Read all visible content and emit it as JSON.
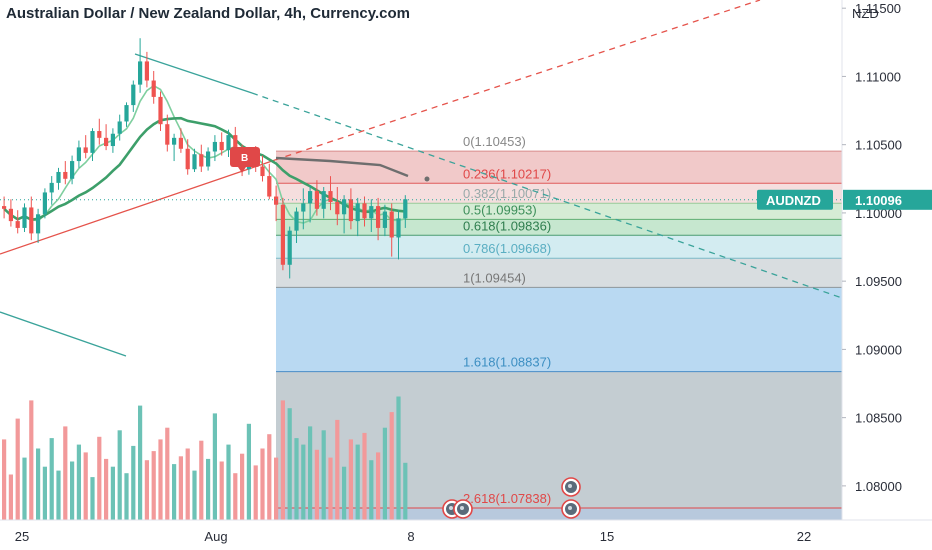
{
  "title": "Australian Dollar / New Zealand Dollar, 4h, Currency.com",
  "currency_label": "NZD",
  "symbol_tag": "AUDNZD",
  "price_tag": "1.10096",
  "buy_marker": "B",
  "colors": {
    "up": "#26a69a",
    "down": "#ef5350",
    "ma_fast": "#7fcf9f",
    "ma_slow": "#3d9f6a",
    "trend_red": "#e5534b",
    "trend_teal": "#3aa39a",
    "accent_blue": "#2962ff"
  },
  "chart_data": {
    "type": "candlestick",
    "symbol": "AUDNZD",
    "timeframe": "4h",
    "ylim": [
      1.0775,
      1.1156
    ],
    "y_ticks": [
      "1.11500",
      "1.11000",
      "1.10500",
      "1.10000",
      "1.09500",
      "1.09000",
      "1.08500",
      "1.08000"
    ],
    "x_ticks": [
      "25",
      "Aug",
      "8",
      "15",
      "22"
    ],
    "last_price": 1.10096,
    "fib_levels": [
      {
        "label": "0(1.10453)",
        "price": 1.10453
      },
      {
        "label": "0.236(1.10217)",
        "price": 1.10217
      },
      {
        "label": "0.382(1.10071)",
        "price": 1.10071
      },
      {
        "label": "0.5(1.09953)",
        "price": 1.09953
      },
      {
        "label": "0.618(1.09836)",
        "price": 1.09836
      },
      {
        "label": "0.786(1.09668)",
        "price": 1.09668
      },
      {
        "label": "1(1.09454)",
        "price": 1.09454
      },
      {
        "label": "1.618(1.08837)",
        "price": 1.08837
      },
      {
        "label": "2.618(1.07838)",
        "price": 1.07838
      }
    ],
    "candles": [
      [
        1.1005,
        1.1012,
        1.0996,
        1.1003
      ],
      [
        1.1003,
        1.101,
        1.099,
        1.0994
      ],
      [
        1.0994,
        1.1002,
        1.0985,
        1.0989
      ],
      [
        1.0989,
        1.1007,
        1.0986,
        1.1004
      ],
      [
        1.1004,
        1.1012,
        1.098,
        1.0985
      ],
      [
        1.0985,
        1.1003,
        1.0978,
        1.0999
      ],
      [
        1.0999,
        1.1018,
        1.0996,
        1.1015
      ],
      [
        1.1015,
        1.1027,
        1.1006,
        1.1022
      ],
      [
        1.1022,
        1.1033,
        1.1017,
        1.103
      ],
      [
        1.103,
        1.1038,
        1.1021,
        1.1025
      ],
      [
        1.1025,
        1.1042,
        1.1021,
        1.1038
      ],
      [
        1.1038,
        1.1053,
        1.1033,
        1.1048
      ],
      [
        1.1048,
        1.1057,
        1.104,
        1.1044
      ],
      [
        1.1044,
        1.1062,
        1.1038,
        1.106
      ],
      [
        1.106,
        1.1069,
        1.105,
        1.1055
      ],
      [
        1.1055,
        1.1065,
        1.1046,
        1.1049
      ],
      [
        1.1049,
        1.1062,
        1.1044,
        1.1058
      ],
      [
        1.1058,
        1.1072,
        1.1053,
        1.1067
      ],
      [
        1.1067,
        1.1081,
        1.1063,
        1.1079
      ],
      [
        1.1079,
        1.1097,
        1.1074,
        1.1094
      ],
      [
        1.1094,
        1.1128,
        1.1088,
        1.1111
      ],
      [
        1.1111,
        1.1118,
        1.1092,
        1.1097
      ],
      [
        1.1097,
        1.1104,
        1.108,
        1.1085
      ],
      [
        1.1085,
        1.1089,
        1.106,
        1.1065
      ],
      [
        1.1065,
        1.1072,
        1.1045,
        1.105
      ],
      [
        1.105,
        1.1058,
        1.1038,
        1.1055
      ],
      [
        1.1055,
        1.1062,
        1.1044,
        1.1047
      ],
      [
        1.1047,
        1.1054,
        1.1028,
        1.1032
      ],
      [
        1.1032,
        1.1047,
        1.103,
        1.1043
      ],
      [
        1.1043,
        1.105,
        1.103,
        1.1034
      ],
      [
        1.1034,
        1.1048,
        1.1031,
        1.1045
      ],
      [
        1.1045,
        1.1057,
        1.1038,
        1.1052
      ],
      [
        1.1052,
        1.1059,
        1.1042,
        1.1046
      ],
      [
        1.1046,
        1.1061,
        1.1041,
        1.1057
      ],
      [
        1.1057,
        1.1063,
        1.104,
        1.1043
      ],
      [
        1.1043,
        1.105,
        1.1027,
        1.1032
      ],
      [
        1.1032,
        1.1048,
        1.1028,
        1.1044
      ],
      [
        1.1044,
        1.1049,
        1.103,
        1.1034
      ],
      [
        1.1034,
        1.1042,
        1.1023,
        1.1027
      ],
      [
        1.1027,
        1.1036,
        1.101,
        1.1012
      ],
      [
        1.1012,
        1.102,
        1.0994,
        1.1006
      ],
      [
        1.1006,
        1.1011,
        1.0958,
        1.0962
      ],
      [
        1.0962,
        1.099,
        1.0952,
        1.0987
      ],
      [
        1.0987,
        1.1004,
        1.0978,
        1.1001
      ],
      [
        1.1001,
        1.1018,
        1.0988,
        1.1007
      ],
      [
        1.1007,
        1.102,
        1.0993,
        1.1016
      ],
      [
        1.1016,
        1.1024,
        1.0998,
        1.1003
      ],
      [
        1.1003,
        1.1019,
        1.0996,
        1.1016
      ],
      [
        1.1016,
        1.1027,
        1.1002,
        1.1008
      ],
      [
        1.1008,
        1.1019,
        1.0991,
        1.0999
      ],
      [
        1.0999,
        1.1013,
        1.0985,
        1.101
      ],
      [
        1.101,
        1.1018,
        1.0988,
        1.0994
      ],
      [
        1.0994,
        1.1011,
        1.0983,
        1.1007
      ],
      [
        1.1007,
        1.1012,
        1.099,
        1.0996
      ],
      [
        1.0996,
        1.101,
        1.0986,
        1.1005
      ],
      [
        1.1005,
        1.1011,
        1.098,
        1.0989
      ],
      [
        1.0989,
        1.1006,
        1.0983,
        1.1001
      ],
      [
        1.1001,
        1.1007,
        1.0968,
        1.0982
      ],
      [
        1.0982,
        1.1002,
        1.0966,
        1.0996
      ],
      [
        1.0996,
        1.1013,
        1.0989,
        1.101
      ]
    ],
    "volume": [
      0.62,
      0.35,
      0.78,
      0.48,
      0.92,
      0.55,
      0.41,
      0.63,
      0.38,
      0.72,
      0.45,
      0.58,
      0.52,
      0.33,
      0.64,
      0.47,
      0.41,
      0.69,
      0.36,
      0.57,
      0.88,
      0.46,
      0.53,
      0.62,
      0.71,
      0.43,
      0.49,
      0.55,
      0.38,
      0.61,
      0.47,
      0.82,
      0.45,
      0.58,
      0.36,
      0.51,
      0.74,
      0.42,
      0.55,
      0.66,
      0.48,
      0.92,
      0.86,
      0.63,
      0.58,
      0.72,
      0.54,
      0.69,
      0.48,
      0.77,
      0.41,
      0.62,
      0.58,
      0.67,
      0.46,
      0.52,
      0.71,
      0.83,
      0.95,
      0.44
    ]
  }
}
